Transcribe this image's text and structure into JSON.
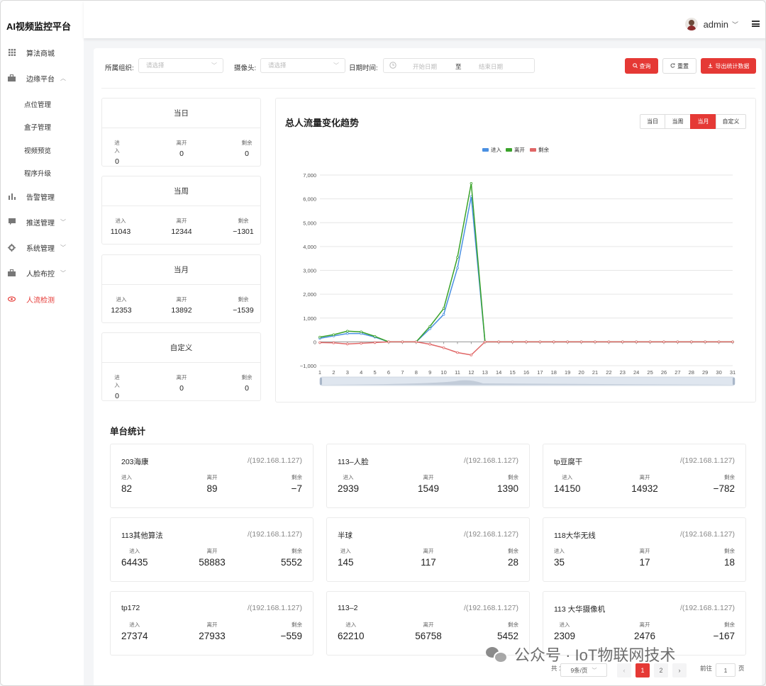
{
  "app": {
    "title": "AI视频监控平台"
  },
  "sidebar": {
    "items": [
      {
        "label": "算法商城",
        "icon": "grid-icon"
      },
      {
        "label": "边缘平台",
        "icon": "briefcase-icon"
      },
      {
        "label": "告警管理",
        "icon": "bar-chart-icon"
      },
      {
        "label": "推送管理",
        "icon": "message-icon"
      },
      {
        "label": "系统管理",
        "icon": "gear-icon"
      },
      {
        "label": "人脸布控",
        "icon": "briefcase-icon"
      },
      {
        "label": "人流检测",
        "icon": "eye-icon"
      }
    ],
    "subitems": [
      "点位管理",
      "盒子管理",
      "视频预览",
      "程序升级"
    ]
  },
  "header": {
    "user": "admin"
  },
  "filters": {
    "org_label": "所属组织:",
    "org_placeholder": "请选择",
    "camera_label": "摄像头:",
    "camera_placeholder": "请选择",
    "date_label": "日期时间:",
    "start_placeholder": "开始日期",
    "to": "至",
    "end_placeholder": "结束日期",
    "query": "查询",
    "reset": "重置",
    "export": "导出统计数据"
  },
  "summary": [
    {
      "title": "当日",
      "in": "0",
      "out": "0",
      "rest": "0"
    },
    {
      "title": "当周",
      "in": "11043",
      "out": "12344",
      "rest": "−1301"
    },
    {
      "title": "当月",
      "in": "12353",
      "out": "13892",
      "rest": "−1539"
    },
    {
      "title": "自定义",
      "in": "0",
      "out": "0",
      "rest": "0"
    }
  ],
  "labels": {
    "in": "进入",
    "out": "离开",
    "rest": "剩余"
  },
  "chart_panel": {
    "title": "总人流量变化趋势",
    "ranges": [
      "当日",
      "当周",
      "当月",
      "自定义"
    ],
    "active_range": "当月"
  },
  "chart_data": {
    "type": "line",
    "x": [
      1,
      2,
      3,
      4,
      5,
      6,
      7,
      8,
      9,
      10,
      11,
      12,
      13,
      14,
      15,
      16,
      17,
      18,
      19,
      20,
      21,
      22,
      23,
      24,
      25,
      26,
      27,
      28,
      29,
      30,
      31
    ],
    "ylim": [
      -1000,
      7000
    ],
    "yticks": [
      "7,000",
      "6,000",
      "5,000",
      "4,000",
      "3,000",
      "2,000",
      "1,000",
      "0",
      "−1,000"
    ],
    "series": [
      {
        "name": "进入",
        "color": "#4a90e2",
        "values": [
          150,
          250,
          350,
          350,
          200,
          0,
          0,
          0,
          550,
          1150,
          3100,
          6100,
          0,
          0,
          0,
          0,
          0,
          0,
          0,
          0,
          0,
          0,
          0,
          0,
          0,
          0,
          0,
          0,
          0,
          0,
          0
        ]
      },
      {
        "name": "离开",
        "color": "#3aa32a",
        "values": [
          200,
          300,
          450,
          420,
          230,
          0,
          0,
          0,
          650,
          1400,
          3550,
          6650,
          0,
          0,
          0,
          0,
          0,
          0,
          0,
          0,
          0,
          0,
          0,
          0,
          0,
          0,
          0,
          0,
          0,
          0,
          0
        ]
      },
      {
        "name": "剩余",
        "color": "#e06666",
        "values": [
          -30,
          -40,
          -90,
          -60,
          -30,
          0,
          0,
          0,
          -100,
          -250,
          -450,
          -550,
          0,
          0,
          0,
          0,
          0,
          0,
          0,
          0,
          0,
          0,
          0,
          0,
          0,
          0,
          0,
          0,
          0,
          0,
          0
        ]
      }
    ],
    "grid": true,
    "legend": "top-center"
  },
  "devices_title": "单台统计",
  "devices": [
    {
      "name": "203海康",
      "ip": "/(192.168.1.127)",
      "in": "82",
      "out": "89",
      "rest": "−7"
    },
    {
      "name": "113–人脸",
      "ip": "/(192.168.1.127)",
      "in": "2939",
      "out": "1549",
      "rest": "1390"
    },
    {
      "name": "tp豆腐干",
      "ip": "/(192.168.1.127)",
      "in": "14150",
      "out": "14932",
      "rest": "−782"
    },
    {
      "name": "113其他算法",
      "ip": "/(192.168.1.127)",
      "in": "64435",
      "out": "58883",
      "rest": "5552"
    },
    {
      "name": "半球",
      "ip": "/(192.168.1.127)",
      "in": "145",
      "out": "117",
      "rest": "28"
    },
    {
      "name": "118大华无线",
      "ip": "/(192.168.1.127)",
      "in": "35",
      "out": "17",
      "rest": "18"
    },
    {
      "name": "tp172",
      "ip": "/(192.168.1.127)",
      "in": "27374",
      "out": "27933",
      "rest": "−559"
    },
    {
      "name": "113–2",
      "ip": "/(192.168.1.127)",
      "in": "62210",
      "out": "56758",
      "rest": "5452"
    },
    {
      "name": "113 大华摄像机",
      "ip": "/(192.168.1.127)",
      "in": "2309",
      "out": "2476",
      "rest": "−167"
    }
  ],
  "pagination": {
    "total": "共 12 条",
    "page_size": "9条/页",
    "pages": [
      "1",
      "2"
    ],
    "goto": "前往",
    "goto_value": "1",
    "page_unit": "页"
  },
  "watermark": "公众号 · IoT物联网技术"
}
